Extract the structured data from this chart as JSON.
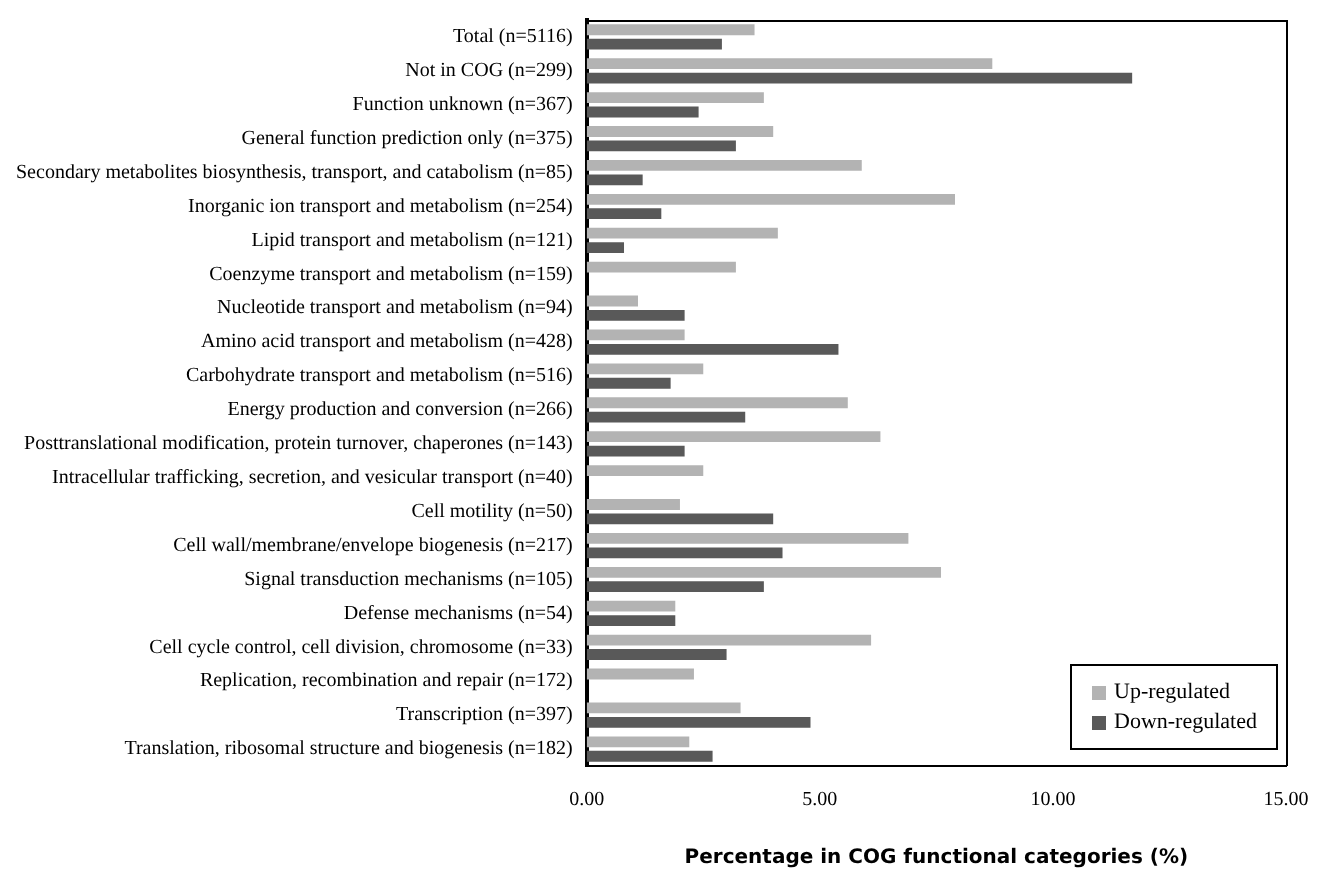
{
  "chart_data": {
    "type": "bar",
    "orientation": "horizontal",
    "xlabel": "Percentage in COG functional categories (%)",
    "categories": [
      "Total (n=5116)",
      "Not in COG (n=299)",
      "Function unknown (n=367)",
      "General function prediction only (n=375)",
      "Secondary metabolites biosynthesis, transport, and catabolism (n=85)",
      "Inorganic ion transport and metabolism (n=254)",
      "Lipid transport and metabolism (n=121)",
      "Coenzyme transport and metabolism (n=159)",
      "Nucleotide transport and metabolism (n=94)",
      "Amino acid transport and metabolism (n=428)",
      "Carbohydrate transport and metabolism (n=516)",
      "Energy production and conversion (n=266)",
      "Posttranslational modification, protein turnover, chaperones (n=143)",
      "Intracellular trafficking, secretion, and vesicular transport (n=40)",
      "Cell motility (n=50)",
      "Cell wall/membrane/envelope biogenesis (n=217)",
      "Signal transduction mechanisms (n=105)",
      "Defense mechanisms (n=54)",
      "Cell cycle control, cell division, chromosome (n=33)",
      "Replication, recombination and repair (n=172)",
      "Transcription (n=397)",
      "Translation, ribosomal structure and biogenesis (n=182)"
    ],
    "series": [
      {
        "name": "Up-regulated",
        "color": "#b3b3b3",
        "values": [
          3.6,
          8.7,
          3.8,
          4.0,
          5.9,
          7.9,
          4.1,
          3.2,
          1.1,
          2.1,
          2.5,
          5.6,
          6.3,
          2.5,
          2.0,
          6.9,
          7.6,
          1.9,
          6.1,
          2.3,
          3.3,
          2.2
        ]
      },
      {
        "name": "Down-regulated",
        "color": "#595959",
        "values": [
          2.9,
          11.7,
          2.4,
          3.2,
          1.2,
          1.6,
          0.8,
          0,
          2.1,
          5.4,
          1.8,
          3.4,
          2.1,
          0,
          4.0,
          4.2,
          3.8,
          1.9,
          3.0,
          0,
          4.8,
          2.7
        ]
      }
    ],
    "xlim": [
      0,
      15
    ],
    "xticks": [
      {
        "value": 0,
        "label": "0.00"
      },
      {
        "value": 5,
        "label": "5.00"
      },
      {
        "value": 10,
        "label": "10.00"
      },
      {
        "value": 15,
        "label": "15.00"
      }
    ],
    "grid": false,
    "legend": "bottom right"
  }
}
